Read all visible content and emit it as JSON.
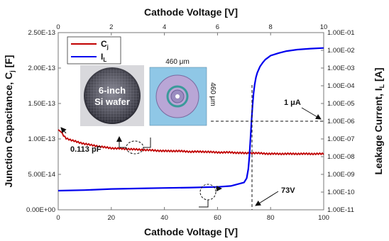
{
  "chart_data": {
    "type": "line",
    "title": "",
    "xlabel_bottom": "Cathode Voltage [V]",
    "xlabel_top": "Cathode Voltage [V]",
    "ylabel_left_main": "Junction Capacitance, C",
    "ylabel_left_sub": "j",
    "ylabel_left_unit": " [F]",
    "ylabel_right_main": "Leakage Current, I",
    "ylabel_right_sub": "L",
    "ylabel_right_unit": " [A]",
    "x_bottom": {
      "min": 0,
      "max": 100,
      "ticks": [
        "0",
        "20",
        "40",
        "60",
        "80",
        "100"
      ]
    },
    "x_top": {
      "min": 0,
      "max": 10,
      "ticks": [
        "0",
        "2",
        "4",
        "6",
        "8",
        "10"
      ]
    },
    "y_left": {
      "min": 0,
      "max": 2.5e-13,
      "ticks": [
        "0.00E+00",
        "5.00E-14",
        "1.00E-13",
        "1.50E-13",
        "2.00E-13",
        "2.50E-13"
      ]
    },
    "y_right": {
      "scale": "log",
      "min": 1e-11,
      "max": 0.1,
      "ticks": [
        "1.00E-11",
        "1.00E-10",
        "1.00E-09",
        "1.00E-08",
        "1.00E-07",
        "1.00E-06",
        "1.00E-05",
        "1.00E-04",
        "1.00E-03",
        "1.00E-02",
        "1.00E-01"
      ]
    },
    "grid": false,
    "legend_position": "top-left",
    "series": [
      {
        "name": "C",
        "name_sub": "j",
        "color": "#c00000",
        "axis": "left-bottom",
        "x": [
          0,
          1,
          2,
          3,
          5,
          8,
          10,
          13,
          16,
          20,
          25,
          30,
          35,
          40,
          45,
          50,
          55,
          60,
          65,
          70,
          73,
          75,
          80,
          85,
          90,
          95,
          100
        ],
        "y": [
          1.13e-13,
          1.1e-13,
          1.05e-13,
          1.01e-13,
          9.8e-14,
          9.5e-14,
          9.3e-14,
          9.1e-14,
          8.9e-14,
          8.7e-14,
          8.6e-14,
          8.5e-14,
          8.4e-14,
          8.3e-14,
          8.3e-14,
          8.2e-14,
          8.2e-14,
          8.1e-14,
          8.1e-14,
          8e-14,
          8e-14,
          8e-14,
          7.9e-14,
          7.9e-14,
          7.9e-14,
          7.9e-14,
          7.9e-14
        ]
      },
      {
        "name": "I",
        "name_sub": "L",
        "color": "#0000ee",
        "axis": "right-bottom",
        "x": [
          0,
          10,
          20,
          30,
          40,
          50,
          60,
          65,
          70,
          71,
          71.6,
          72,
          72.4,
          72.8,
          73.2,
          73.6,
          74,
          74.5,
          75,
          76,
          77,
          78,
          80,
          83,
          86,
          90,
          95,
          100
        ],
        "y": [
          1.2e-10,
          1.3e-10,
          1.5e-10,
          1.6e-10,
          1.7e-10,
          1.8e-10,
          1.95e-10,
          2.2e-10,
          3.5e-10,
          6e-10,
          2e-09,
          1e-08,
          1e-07,
          1e-06,
          8e-06,
          4e-05,
          0.00012,
          0.0003,
          0.00055,
          0.0012,
          0.002,
          0.003,
          0.005,
          0.007,
          0.009,
          0.011,
          0.0125,
          0.0135
        ]
      }
    ],
    "annotations": {
      "cap_value": "0.113 pF",
      "breakdown_voltage": "73V",
      "current_level": "1 μA"
    }
  },
  "inset": {
    "wafer_line1": "6-inch",
    "wafer_line2": "Si wafer",
    "die_width": "460 μm",
    "die_height": "460 μm"
  }
}
